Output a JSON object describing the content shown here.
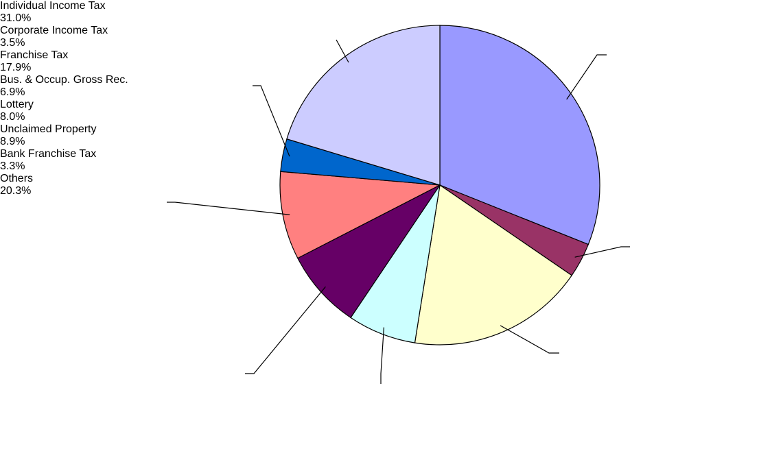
{
  "chart_data": {
    "type": "pie",
    "categories": [
      "Individual Income Tax",
      "Corporate Income Tax",
      "Franchise Tax",
      "Bus. & Occup. Gross Rec.",
      "Lottery",
      "Unclaimed Property",
      "Bank Franchise Tax",
      "Others"
    ],
    "values": [
      31.0,
      3.5,
      17.9,
      6.9,
      8.0,
      8.9,
      3.3,
      20.3
    ],
    "value_labels": [
      "31.0%",
      "3.5%",
      "17.9%",
      "6.9%",
      "8.0%",
      "8.9%",
      "3.3%",
      "20.3%"
    ],
    "colors": [
      "#9999ff",
      "#993366",
      "#ffffcc",
      "#ccffff",
      "#660066",
      "#ff8080",
      "#0066cc",
      "#ccccff"
    ]
  }
}
